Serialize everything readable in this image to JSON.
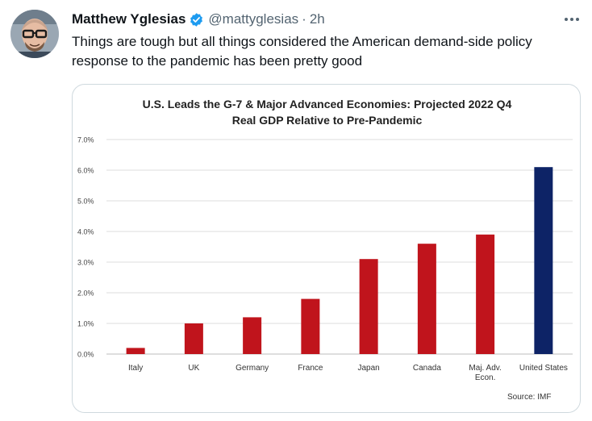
{
  "tweet": {
    "author_name": "Matthew Yglesias",
    "handle": "@mattyglesias",
    "separator": "·",
    "time": "2h",
    "text_line1": "Things are tough but all things considered the American demand-side policy",
    "text_line2": "response to the pandemic has been pretty good",
    "verified_icon": "verified-badge-icon",
    "more_icon": "more-horizontal-icon",
    "colors": {
      "verified": "#1d9bf0",
      "secondary_text": "#536471"
    }
  },
  "chart_data": {
    "type": "bar",
    "title_line1": "U.S. Leads the G-7 & Major Advanced Economies: Projected 2022 Q4",
    "title_line2": "Real GDP Relative to Pre-Pandemic",
    "categories": [
      "Italy",
      "UK",
      "Germany",
      "France",
      "Japan",
      "Canada",
      "Maj. Adv.\nEcon.",
      "United States"
    ],
    "values": [
      0.2,
      1.0,
      1.2,
      1.8,
      3.1,
      3.6,
      3.9,
      6.1
    ],
    "bar_colors": [
      "#c0141c",
      "#c0141c",
      "#c0141c",
      "#c0141c",
      "#c0141c",
      "#c0141c",
      "#c0141c",
      "#0d2366"
    ],
    "yticks": [
      "0.0%",
      "1.0%",
      "2.0%",
      "3.0%",
      "4.0%",
      "5.0%",
      "6.0%",
      "7.0%"
    ],
    "ylim": [
      0,
      7
    ],
    "grid": true,
    "xlabel": "",
    "ylabel": "",
    "source": "Source: IMF"
  }
}
